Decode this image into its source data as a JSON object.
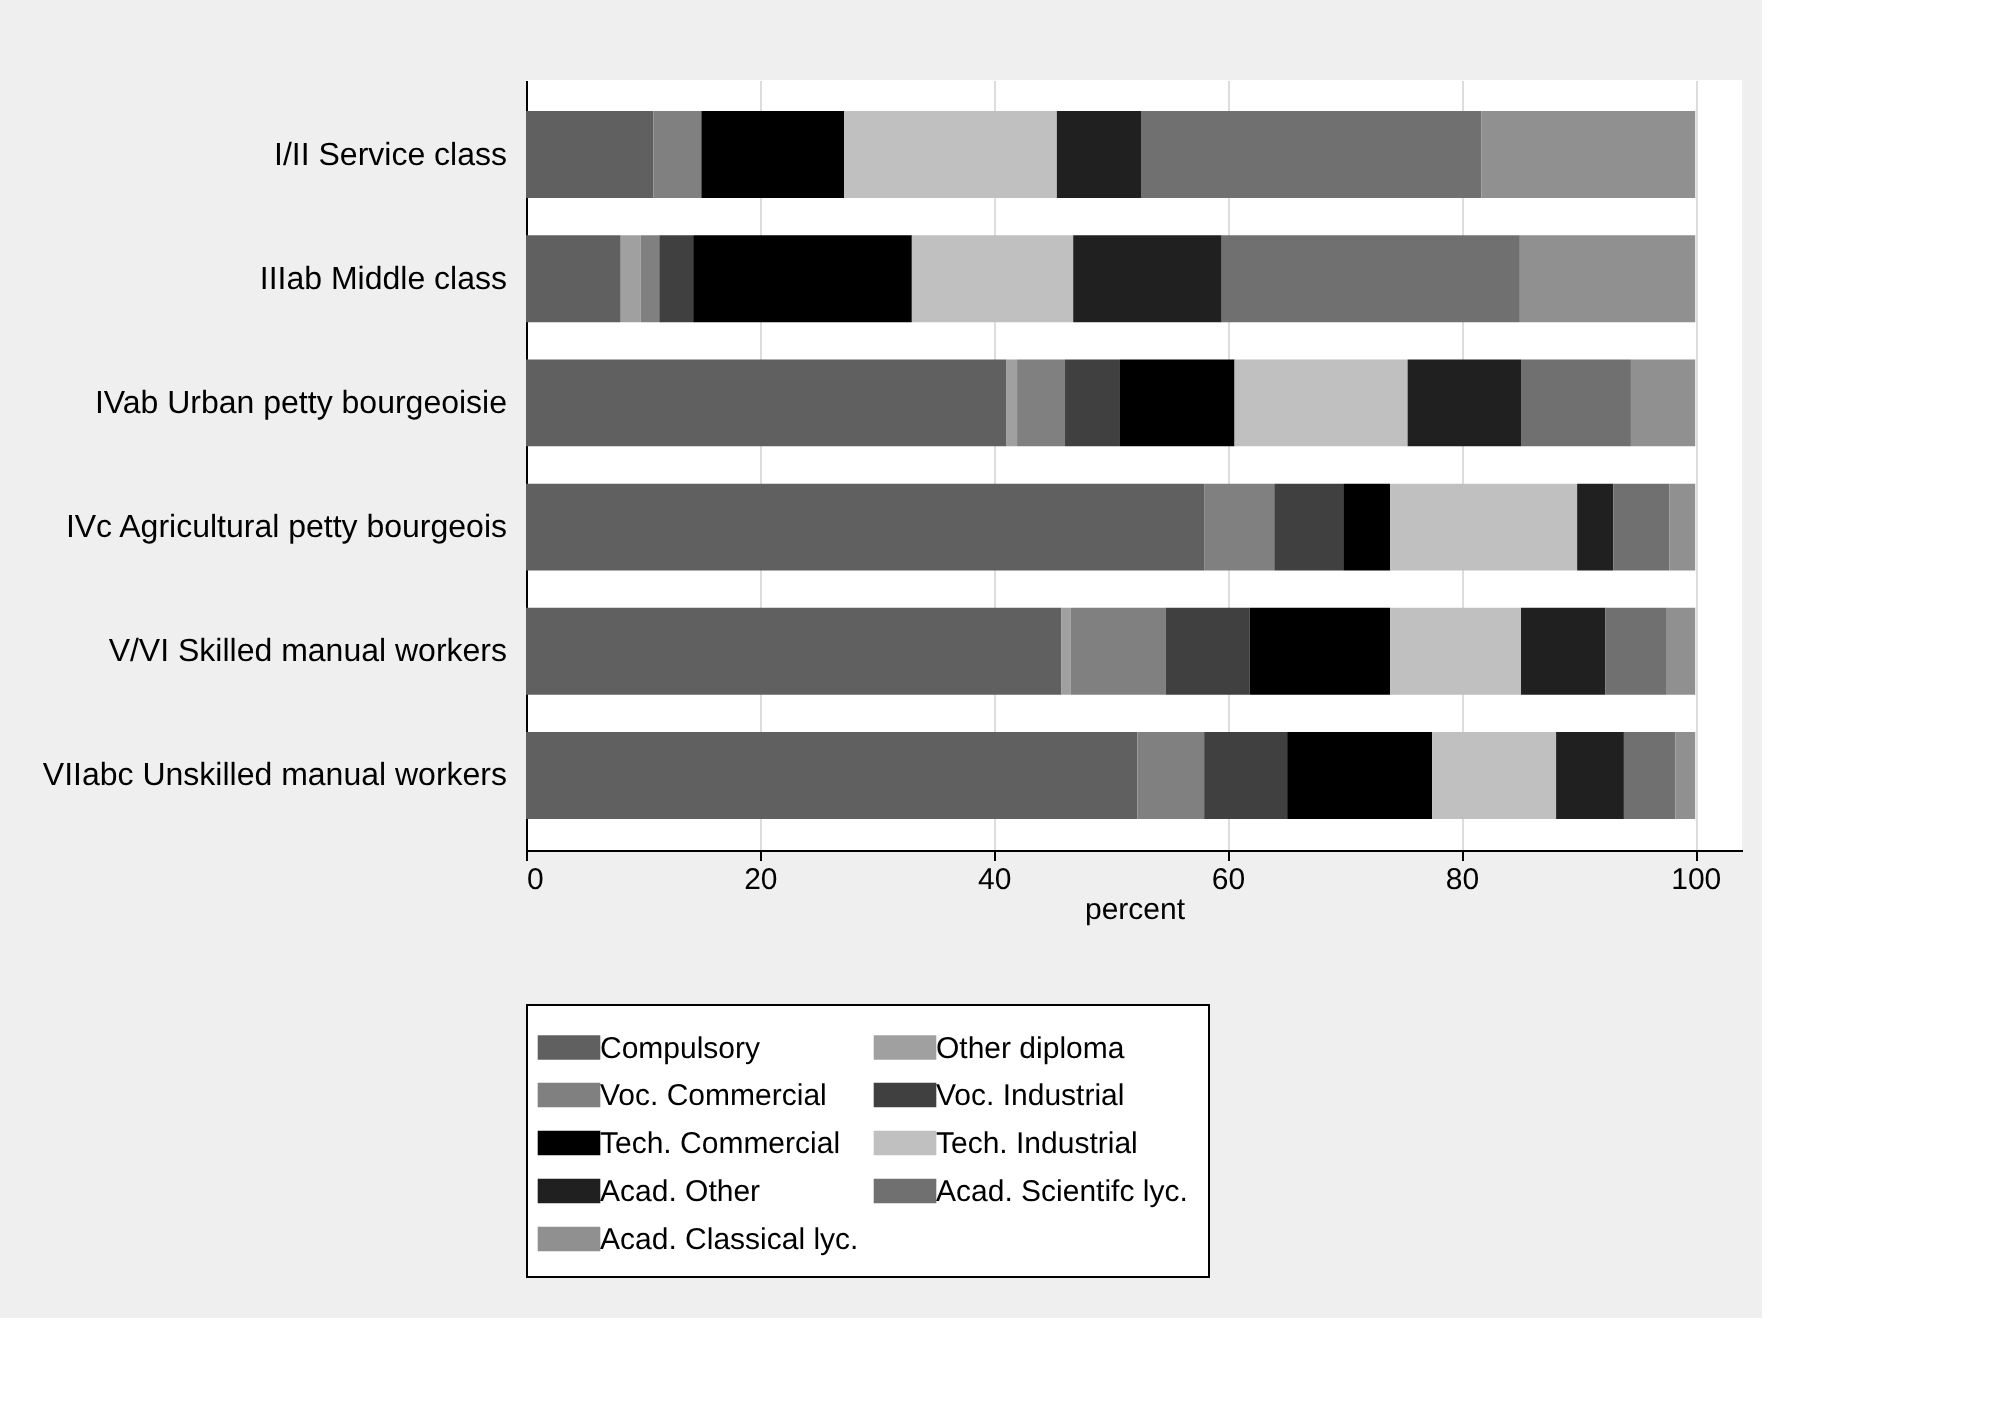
{
  "chart_data": {
    "type": "bar",
    "orientation": "horizontal",
    "stacked": true,
    "xlabel": "percent",
    "categories": [
      "I/II Service class",
      "IIIab Middle class",
      "IVab Urban petty bourgeoisie",
      "IVc Agricultural petty bourgeois",
      "V/VI Skilled manual workers",
      "VIIabc Unskilled manual workers"
    ],
    "series": [
      {
        "name": "Compulsory",
        "color": "#606060",
        "values": [
          10.9,
          8.1,
          41.1,
          58.0,
          45.8,
          52.3
        ]
      },
      {
        "name": "Other diploma",
        "color": "#a0a0a0",
        "values": [
          0,
          1.7,
          0.9,
          0,
          0.8,
          0
        ]
      },
      {
        "name": "Voc. Commercial",
        "color": "#808080",
        "values": [
          4.1,
          1.6,
          4.1,
          6.0,
          8.1,
          5.7
        ]
      },
      {
        "name": "Voc. Industrial",
        "color": "#404040",
        "values": [
          0,
          2.9,
          4.7,
          5.9,
          7.2,
          7.1
        ]
      },
      {
        "name": "Tech. Commercial",
        "color": "#000000",
        "values": [
          12.2,
          18.7,
          9.8,
          4.0,
          12.0,
          12.4
        ]
      },
      {
        "name": "Tech. Industrial",
        "color": "#c0c0c0",
        "values": [
          18.2,
          13.8,
          14.8,
          16.0,
          11.2,
          10.6
        ]
      },
      {
        "name": "Acad. Other",
        "color": "#202020",
        "values": [
          7.2,
          12.7,
          9.7,
          3.1,
          7.2,
          5.8
        ]
      },
      {
        "name": "Acad. Scientifc lyc.",
        "color": "#707070",
        "values": [
          29.1,
          25.5,
          9.4,
          4.8,
          5.2,
          4.4
        ]
      },
      {
        "name": "Acad. Classical lyc.",
        "color": "#909090",
        "values": [
          18.3,
          15.0,
          5.5,
          2.2,
          2.5,
          1.7
        ]
      }
    ],
    "xlim": [
      0,
      104
    ],
    "xticks": [
      0,
      20,
      40,
      60,
      80,
      100
    ],
    "grid": "x",
    "legend": "bottom"
  }
}
